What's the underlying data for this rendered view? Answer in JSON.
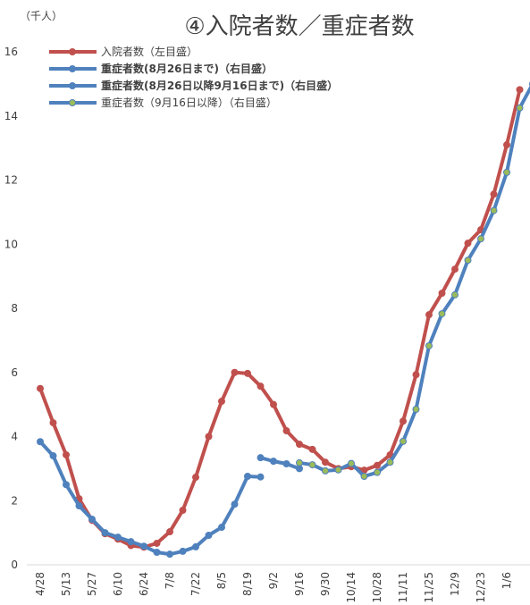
{
  "chart_data": {
    "type": "line",
    "title": "④入院者数／重症者数",
    "y_label": "（千人）",
    "ylim": [
      0,
      16
    ],
    "yticks": [
      0,
      2,
      4,
      6,
      8,
      10,
      12,
      14,
      16
    ],
    "grid": false,
    "categories": [
      "4/28",
      null,
      "5/13",
      null,
      "5/27",
      null,
      "6/10",
      null,
      "6/24",
      null,
      "7/8",
      null,
      "7/22",
      null,
      "8/5",
      null,
      "8/19",
      null,
      "9/2",
      null,
      "9/16",
      null,
      "9/30",
      null,
      "10/14",
      null,
      "10/28",
      null,
      "11/11",
      null,
      "11/25",
      null,
      "12/9",
      null,
      "12/23",
      null,
      "1/6",
      null,
      null
    ],
    "series": [
      {
        "name": "入院者数（左目盛）",
        "color": "#c0504d",
        "marker_fill": "#c0504d",
        "values": [
          5.5,
          4.43,
          3.43,
          2.06,
          1.39,
          0.97,
          0.8,
          0.6,
          0.55,
          0.67,
          1.03,
          1.7,
          2.73,
          4.0,
          5.1,
          6.0,
          5.97,
          5.57,
          5.0,
          4.18,
          3.76,
          3.6,
          3.2,
          3.0,
          3.06,
          2.95,
          3.1,
          3.43,
          4.48,
          5.93,
          7.8,
          8.47,
          9.22,
          10.03,
          10.45,
          11.56,
          13.1,
          14.82,
          null
        ]
      },
      {
        "name": "重症者数(8月26日まで)（右目盛）",
        "color": "#4f81bd",
        "marker_fill": "#4f81bd",
        "values": [
          3.84,
          3.4,
          2.5,
          1.84,
          1.42,
          1.0,
          0.86,
          0.72,
          0.58,
          0.39,
          0.33,
          0.42,
          0.56,
          0.92,
          1.17,
          1.89,
          2.76,
          2.74,
          null,
          null,
          null,
          null,
          null,
          null,
          null,
          null,
          null,
          null,
          null,
          null,
          null,
          null,
          null,
          null,
          null,
          null,
          null,
          null,
          null
        ]
      },
      {
        "name": "重症者数(8月26日以降9月16日まで)（右目盛）",
        "color": "#4f81bd",
        "marker_fill": "#4f81bd",
        "values": [
          null,
          null,
          null,
          null,
          null,
          null,
          null,
          null,
          null,
          null,
          null,
          null,
          null,
          null,
          null,
          null,
          null,
          3.34,
          3.23,
          3.15,
          3.0,
          null,
          null,
          null,
          null,
          null,
          null,
          null,
          null,
          null,
          null,
          null,
          null,
          null,
          null,
          null,
          null,
          null,
          null
        ]
      },
      {
        "name": "重症者数（9月16日以降）（右目盛）",
        "color": "#4f81bd",
        "marker_fill": "#9bbb59",
        "values": [
          null,
          null,
          null,
          null,
          null,
          null,
          null,
          null,
          null,
          null,
          null,
          null,
          null,
          null,
          null,
          null,
          null,
          null,
          null,
          null,
          3.18,
          3.12,
          2.93,
          2.96,
          3.16,
          2.76,
          2.88,
          3.2,
          3.85,
          4.85,
          6.83,
          7.83,
          8.42,
          9.5,
          10.17,
          11.05,
          12.24,
          14.25,
          15.0
        ]
      }
    ]
  }
}
